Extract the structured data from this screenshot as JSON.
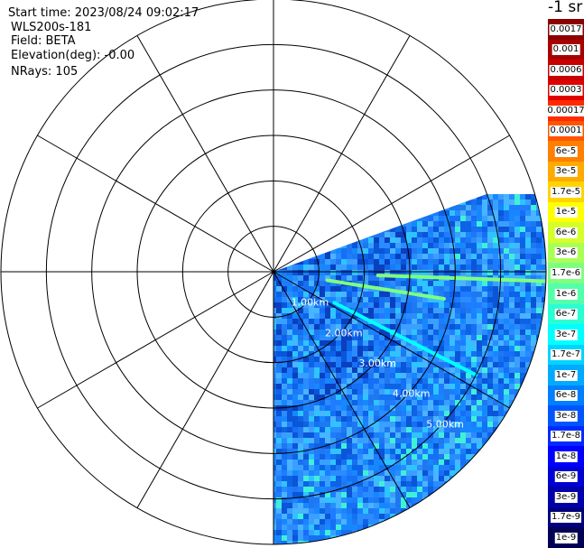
{
  "info": {
    "start_time": "Start time: 2023/08/24 09:02:17",
    "instrument": "WLS200s-181",
    "field": "Field: BETA",
    "elevation": "Elevation(deg): -0.00",
    "nrays": "NRays: 105"
  },
  "colorbar": {
    "unit": "-1 sr",
    "labels": [
      "0.0017",
      "0.001",
      "0.0006",
      "0.0003",
      "0.00017",
      "0.0001",
      "6e-5",
      "3e-5",
      "1.7e-5",
      "1e-5",
      "6e-6",
      "3e-6",
      "1.7e-6",
      "1e-6",
      "6e-7",
      "3e-7",
      "1.7e-7",
      "1e-7",
      "6e-8",
      "3e-8",
      "1.7e-8",
      "1e-8",
      "6e-9",
      "3e-9",
      "1.7e-9",
      "1e-9"
    ],
    "colors": [
      "#8b0000",
      "#a80000",
      "#c80000",
      "#e00000",
      "#ff2a00",
      "#ff5500",
      "#ff7f00",
      "#ffaa00",
      "#ffd400",
      "#ffff00",
      "#d4ff2a",
      "#aaff55",
      "#7fff7f",
      "#55ffaa",
      "#2affd4",
      "#00ffff",
      "#00d4ff",
      "#00aaff",
      "#007fff",
      "#0055ff",
      "#002aff",
      "#0000ff",
      "#0000d4",
      "#0000aa",
      "#00007f",
      "#000055"
    ]
  },
  "chart_data": {
    "type": "ppi-scan",
    "field": "BETA",
    "unit": "-1 sr",
    "range_ring_labels": [
      "1.00km",
      "2.00km",
      "3.00km",
      "4.00km",
      "5.00km"
    ],
    "range_rings_km": [
      1,
      2,
      3,
      4,
      5,
      6
    ],
    "max_range_km": 6,
    "spoke_step_deg": 30,
    "scan_sector_deg": [
      70,
      180
    ],
    "nrays": 105,
    "elevation_deg": -0.0,
    "start_time": "2023/08/24 09:02:17",
    "features": [
      {
        "bearing_deg": 92,
        "from_km": 2.3,
        "to_km": 6.0,
        "level": "1.7e-6"
      },
      {
        "bearing_deg": 117,
        "from_km": 1.5,
        "to_km": 5.0,
        "level": "3e-7"
      },
      {
        "bearing_deg": 99,
        "from_km": 1.2,
        "to_km": 3.8,
        "level": "1.7e-6"
      }
    ]
  }
}
